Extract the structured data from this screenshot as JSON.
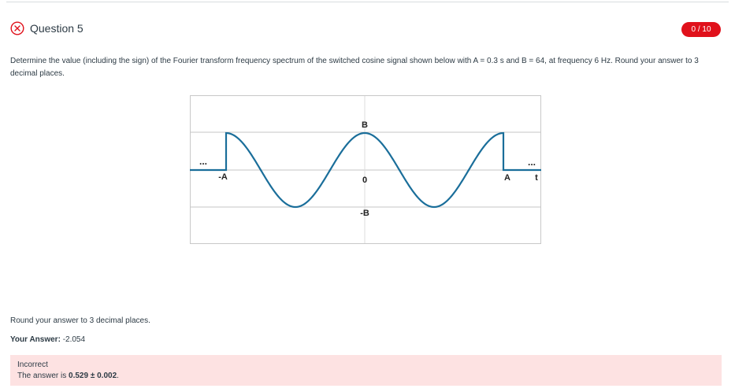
{
  "question": {
    "title": "Question 5",
    "score": "0 / 10",
    "prompt": "Determine the value (including the sign) of the Fourier transform frequency spectrum of the switched cosine signal shown below with A = 0.3 s and B = 64, at frequency 6 Hz. Round your answer to 3 decimal places."
  },
  "figure": {
    "label_B": "B",
    "label_negB": "-B",
    "label_zero": "0",
    "label_negA": "-A",
    "label_A": "A",
    "label_t": "t",
    "ellipsis_left": "...",
    "ellipsis_right": "...",
    "signal_color": "#1a6e9a"
  },
  "answer": {
    "round_note": "Round your answer to 3 decimal places.",
    "your_answer_label": "Your Answer:",
    "your_answer_value": "-2.054"
  },
  "feedback": {
    "status": "Incorrect",
    "text_prefix": "The answer is",
    "correct_value": "0.529 ± 0.002",
    "text_suffix": "."
  },
  "colors": {
    "badge": "#e0111b",
    "feedback_bg": "#fde2e2",
    "incorrect_icon": "#e0111b"
  }
}
